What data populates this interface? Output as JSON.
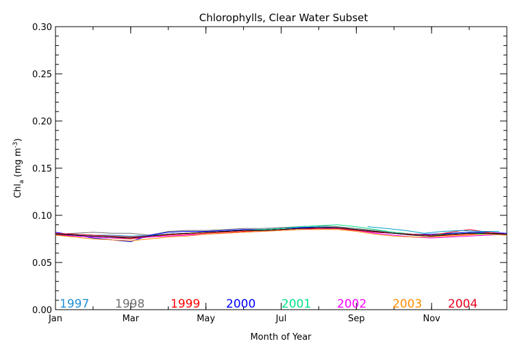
{
  "chart_data": {
    "type": "line",
    "title": "Chlorophylls, Clear Water Subset",
    "xlabel": "Month of Year",
    "ylabel_main": "Chl",
    "ylabel_sub": "a",
    "ylabel_units_open": " (mg m",
    "ylabel_units_sup": "-3",
    "ylabel_units_close": ")",
    "xlim": [
      0,
      12
    ],
    "ylim": [
      0.0,
      0.3
    ],
    "x_ticks": [
      {
        "month": 0,
        "label": "Jan"
      },
      {
        "month": 2,
        "label": "Mar"
      },
      {
        "month": 4,
        "label": "May"
      },
      {
        "month": 6,
        "label": "Jul"
      },
      {
        "month": 8,
        "label": "Sep"
      },
      {
        "month": 10,
        "label": "Nov"
      }
    ],
    "y_ticks": [
      {
        "value": 0.0,
        "label": "0.00"
      },
      {
        "value": 0.05,
        "label": "0.05"
      },
      {
        "value": 0.1,
        "label": "0.10"
      },
      {
        "value": 0.15,
        "label": "0.15"
      },
      {
        "value": 0.2,
        "label": "0.20"
      },
      {
        "value": 0.25,
        "label": "0.25"
      },
      {
        "value": 0.3,
        "label": "0.30"
      }
    ],
    "grid": false,
    "legend_position": "bottom-inside",
    "series": [
      {
        "name": "1997",
        "color": "#1f8fd8",
        "x": [
          0.0,
          0.5,
          1.0,
          1.5,
          2.0,
          2.5,
          3.0,
          3.5,
          4.0,
          4.5,
          5.0,
          5.5,
          6.0,
          6.5,
          7.0,
          7.5,
          8.0,
          8.5,
          9.0,
          9.5,
          10.0,
          10.5,
          11.0,
          11.5,
          12.0
        ],
        "y": [
          0.081,
          0.08,
          0.079,
          0.079,
          0.078,
          0.079,
          0.08,
          0.081,
          0.082,
          0.083,
          0.084,
          0.085,
          0.086,
          0.087,
          0.088,
          0.087,
          0.085,
          0.083,
          0.081,
          0.079,
          0.078,
          0.08,
          0.081,
          0.08,
          0.079
        ]
      },
      {
        "name": "1998",
        "color": "#707070",
        "x": [
          0.0,
          0.5,
          1.0,
          1.5,
          2.0,
          2.5,
          3.0,
          3.5,
          4.0,
          4.5,
          5.0,
          5.5,
          6.0,
          6.5,
          7.0,
          7.5,
          8.0,
          8.5,
          9.0,
          9.5,
          10.0,
          10.5,
          11.0,
          11.5,
          12.0
        ],
        "y": [
          0.08,
          0.081,
          0.082,
          0.081,
          0.081,
          0.079,
          0.083,
          0.084,
          0.084,
          0.085,
          0.086,
          0.086,
          0.087,
          0.088,
          0.089,
          0.088,
          0.086,
          0.084,
          0.082,
          0.08,
          0.079,
          0.081,
          0.082,
          0.081,
          0.08
        ]
      },
      {
        "name": "1999",
        "color": "#ff0000",
        "x": [
          0.0,
          0.5,
          1.0,
          1.5,
          2.0,
          2.5,
          3.0,
          3.5,
          4.0,
          4.5,
          5.0,
          5.5,
          6.0,
          6.5,
          7.0,
          7.5,
          8.0,
          8.5,
          9.0,
          9.5,
          10.0,
          10.5,
          11.0,
          11.5,
          12.0
        ],
        "y": [
          0.079,
          0.078,
          0.077,
          0.076,
          0.075,
          0.077,
          0.079,
          0.08,
          0.081,
          0.082,
          0.083,
          0.084,
          0.085,
          0.086,
          0.087,
          0.086,
          0.085,
          0.083,
          0.081,
          0.079,
          0.078,
          0.079,
          0.08,
          0.081,
          0.079
        ]
      },
      {
        "name": "2000",
        "color": "#0000ff",
        "x": [
          0.0,
          0.5,
          1.0,
          1.5,
          2.0,
          2.5,
          3.0,
          3.5,
          4.0,
          4.5,
          5.0,
          5.5,
          6.0,
          6.5,
          7.0,
          7.5,
          8.0,
          8.5,
          9.0,
          9.5,
          10.0,
          10.5,
          11.0,
          11.5,
          12.0
        ],
        "y": [
          0.082,
          0.079,
          0.076,
          0.074,
          0.072,
          0.079,
          0.082,
          0.083,
          0.083,
          0.084,
          0.085,
          0.085,
          0.086,
          0.087,
          0.087,
          0.086,
          0.084,
          0.082,
          0.081,
          0.08,
          0.08,
          0.081,
          0.082,
          0.082,
          0.081
        ]
      },
      {
        "name": "2001",
        "color": "#00e08a",
        "x": [
          0.0,
          0.5,
          1.0,
          1.5,
          2.0,
          2.5,
          3.0,
          3.5,
          4.0,
          4.5,
          5.0,
          5.5,
          6.0,
          6.5,
          7.0,
          7.5,
          8.0,
          8.5,
          9.0,
          9.5,
          10.0,
          10.5,
          11.0,
          11.5,
          12.0
        ],
        "y": [
          0.08,
          0.079,
          0.078,
          0.077,
          0.077,
          0.078,
          0.08,
          0.081,
          0.082,
          0.083,
          0.084,
          0.085,
          0.086,
          0.088,
          0.089,
          0.09,
          0.088,
          0.085,
          0.082,
          0.08,
          0.079,
          0.08,
          0.081,
          0.08,
          0.08
        ]
      },
      {
        "name": "2002",
        "color": "#ff00ff",
        "x": [
          0.0,
          0.5,
          1.0,
          1.5,
          2.0,
          2.5,
          3.0,
          3.5,
          4.0,
          4.5,
          5.0,
          5.5,
          6.0,
          6.5,
          7.0,
          7.5,
          8.0,
          8.5,
          9.0,
          9.5,
          10.0,
          10.5,
          11.0,
          11.5,
          12.0
        ],
        "y": [
          0.08,
          0.078,
          0.077,
          0.076,
          0.076,
          0.077,
          0.078,
          0.079,
          0.08,
          0.081,
          0.082,
          0.083,
          0.084,
          0.085,
          0.086,
          0.086,
          0.084,
          0.081,
          0.079,
          0.077,
          0.076,
          0.077,
          0.078,
          0.079,
          0.08
        ]
      },
      {
        "name": "2003",
        "color": "#ff8c00",
        "x": [
          0.0,
          0.5,
          1.0,
          1.5,
          2.0,
          2.5,
          3.0,
          3.5,
          4.0,
          4.5,
          5.0,
          5.5,
          6.0,
          6.5,
          7.0,
          7.5,
          8.0,
          8.5,
          9.0,
          9.5,
          10.0,
          10.5,
          11.0,
          11.5,
          12.0
        ],
        "y": [
          0.079,
          0.077,
          0.075,
          0.074,
          0.073,
          0.075,
          0.077,
          0.078,
          0.08,
          0.081,
          0.082,
          0.083,
          0.084,
          0.085,
          0.085,
          0.085,
          0.083,
          0.08,
          0.078,
          0.077,
          0.077,
          0.078,
          0.079,
          0.08,
          0.079
        ]
      },
      {
        "name": "2004",
        "color": "#e8001c",
        "x": [
          0.0,
          0.5,
          1.0,
          1.5,
          2.0,
          2.5,
          3.0,
          3.5,
          4.0,
          4.5,
          5.0,
          5.5,
          6.0,
          6.5,
          7.0,
          7.5,
          8.0,
          8.5,
          9.0,
          9.5,
          10.0,
          10.5,
          11.0,
          11.5,
          12.0
        ],
        "y": [
          0.081,
          0.08,
          0.079,
          0.078,
          0.077,
          0.078,
          0.08,
          0.081,
          0.082,
          0.083,
          0.084,
          0.084,
          0.085,
          0.086,
          0.086,
          0.086,
          0.084,
          0.082,
          0.081,
          0.08,
          0.079,
          0.082,
          0.085,
          0.082,
          0.08
        ]
      },
      {
        "name": "",
        "color": "#000000",
        "x": [
          0.0,
          0.5,
          1.0,
          1.5,
          2.0,
          2.5,
          3.0,
          3.5,
          4.0,
          4.5,
          5.0,
          5.5,
          6.0,
          6.5,
          7.0,
          7.5,
          8.0,
          8.5,
          9.0,
          9.5,
          10.0,
          10.5,
          11.0,
          11.5,
          12.0
        ],
        "y": [
          0.08,
          0.079,
          0.078,
          0.077,
          0.076,
          0.078,
          0.08,
          0.081,
          0.082,
          0.083,
          0.084,
          0.084,
          0.085,
          0.086,
          0.087,
          0.087,
          0.085,
          0.083,
          0.081,
          0.079,
          0.078,
          0.08,
          0.081,
          0.081,
          0.08
        ]
      },
      {
        "name": "",
        "color": "#00a0c8",
        "x": [
          8.3,
          8.8,
          9.3,
          9.8,
          10.3,
          10.8,
          11.3,
          11.8
        ],
        "y": [
          0.088,
          0.086,
          0.084,
          0.081,
          0.083,
          0.084,
          0.083,
          0.083
        ]
      }
    ]
  }
}
